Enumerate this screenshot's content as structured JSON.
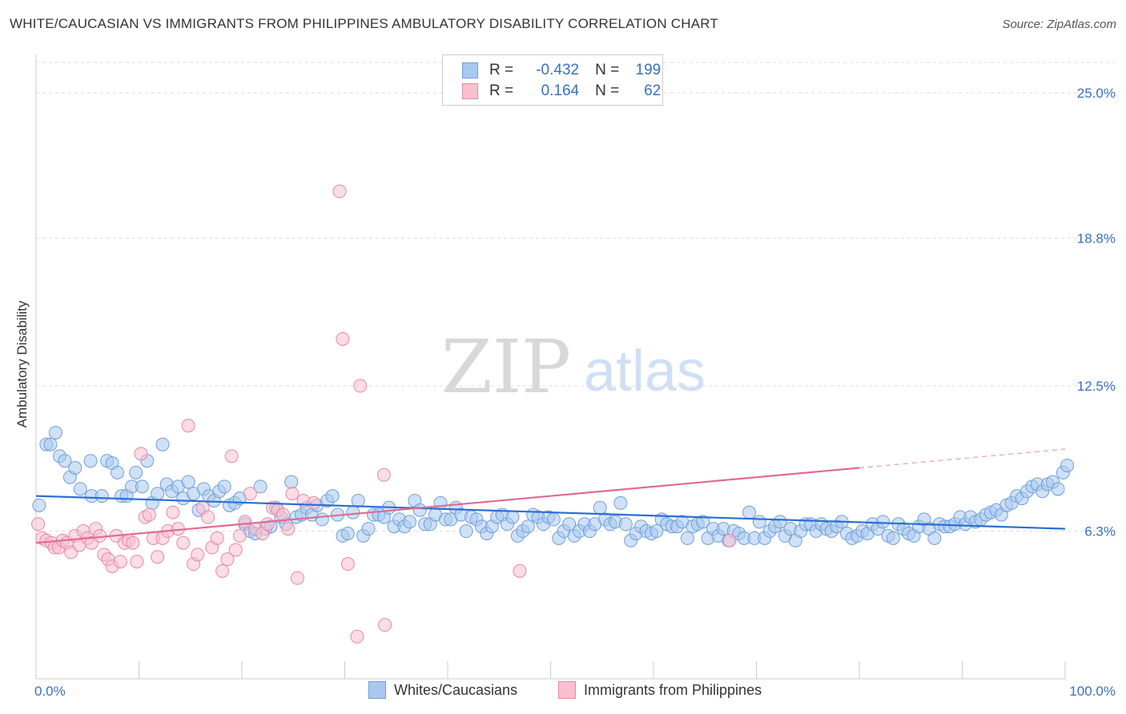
{
  "title": "WHITE/CAUCASIAN VS IMMIGRANTS FROM PHILIPPINES AMBULATORY DISABILITY CORRELATION CHART",
  "source": "Source: ZipAtlas.com",
  "watermark": {
    "zip": "ZIP",
    "atlas": "atlas"
  },
  "legend_top": {
    "r_label": "R =",
    "n_label": "N =",
    "rows": [
      {
        "r": "-0.432",
        "n": "199",
        "color": "#a9c8f0",
        "border": "#6f9fd8"
      },
      {
        "r": "0.164",
        "n": "62",
        "color": "#f9c0d0",
        "border": "#e38aa5"
      }
    ]
  },
  "chart_data": {
    "type": "scatter",
    "title": "WHITE/CAUCASIAN VS IMMIGRANTS FROM PHILIPPINES AMBULATORY DISABILITY CORRELATION CHART",
    "xlabel": "",
    "ylabel": "Ambulatory Disability",
    "xlim": [
      0,
      100
    ],
    "ylim": [
      0,
      26.3
    ],
    "x_tick_labels": [
      "0.0%",
      "100.0%"
    ],
    "y_ticks": [
      6.3,
      12.5,
      18.8,
      25.0
    ],
    "y_tick_labels": [
      "6.3%",
      "12.5%",
      "18.8%",
      "25.0%"
    ],
    "grid": true,
    "legend_position": "bottom",
    "series": [
      {
        "name": "Whites/Caucasians",
        "color": "#6f9fd8",
        "fill": "#a9c8f0",
        "trend": {
          "x0": 0,
          "y0": 7.8,
          "x1": 100,
          "y1": 6.4,
          "dash_from": null
        },
        "points": [
          [
            0.3,
            7.4
          ],
          [
            1.0,
            10.0
          ],
          [
            1.4,
            10.0
          ],
          [
            1.9,
            10.5
          ],
          [
            2.3,
            9.5
          ],
          [
            2.8,
            9.3
          ],
          [
            3.3,
            8.6
          ],
          [
            3.8,
            9.0
          ],
          [
            4.3,
            8.1
          ],
          [
            5.4,
            7.8
          ],
          [
            5.3,
            9.3
          ],
          [
            6.4,
            7.8
          ],
          [
            6.9,
            9.3
          ],
          [
            7.4,
            9.2
          ],
          [
            7.9,
            8.8
          ],
          [
            8.3,
            7.8
          ],
          [
            8.8,
            7.8
          ],
          [
            9.3,
            8.2
          ],
          [
            9.7,
            8.8
          ],
          [
            10.3,
            8.2
          ],
          [
            10.8,
            9.3
          ],
          [
            11.3,
            7.5
          ],
          [
            11.8,
            7.9
          ],
          [
            12.3,
            10.0
          ],
          [
            12.7,
            8.3
          ],
          [
            13.2,
            8.0
          ],
          [
            13.8,
            8.2
          ],
          [
            14.3,
            7.7
          ],
          [
            14.8,
            8.4
          ],
          [
            15.3,
            7.9
          ],
          [
            15.8,
            7.2
          ],
          [
            16.3,
            8.1
          ],
          [
            16.8,
            7.8
          ],
          [
            17.3,
            7.6
          ],
          [
            17.8,
            8.0
          ],
          [
            18.3,
            8.2
          ],
          [
            18.8,
            7.4
          ],
          [
            19.3,
            7.5
          ],
          [
            19.8,
            7.7
          ],
          [
            20.3,
            6.6
          ],
          [
            20.8,
            6.3
          ],
          [
            21.3,
            6.2
          ],
          [
            21.8,
            8.2
          ],
          [
            22.3,
            6.4
          ],
          [
            22.8,
            6.5
          ],
          [
            23.3,
            7.3
          ],
          [
            23.8,
            6.9
          ],
          [
            24.3,
            6.6
          ],
          [
            24.8,
            8.4
          ],
          [
            25.3,
            6.9
          ],
          [
            25.8,
            7.0
          ],
          [
            26.3,
            7.3
          ],
          [
            26.8,
            7.0
          ],
          [
            27.3,
            7.4
          ],
          [
            27.8,
            6.8
          ],
          [
            28.3,
            7.6
          ],
          [
            28.8,
            7.8
          ],
          [
            29.3,
            7.0
          ],
          [
            29.8,
            6.1
          ],
          [
            30.3,
            6.2
          ],
          [
            30.8,
            7.1
          ],
          [
            31.3,
            7.6
          ],
          [
            31.8,
            6.1
          ],
          [
            32.3,
            6.4
          ],
          [
            32.8,
            7.0
          ],
          [
            33.3,
            7.0
          ],
          [
            33.8,
            6.9
          ],
          [
            34.3,
            7.3
          ],
          [
            34.8,
            6.5
          ],
          [
            35.3,
            6.8
          ],
          [
            35.8,
            6.5
          ],
          [
            36.3,
            6.7
          ],
          [
            36.8,
            7.6
          ],
          [
            37.3,
            7.2
          ],
          [
            37.8,
            6.6
          ],
          [
            38.3,
            6.6
          ],
          [
            38.8,
            7.0
          ],
          [
            39.3,
            7.5
          ],
          [
            39.8,
            6.8
          ],
          [
            40.3,
            6.8
          ],
          [
            40.8,
            7.3
          ],
          [
            41.3,
            7.0
          ],
          [
            41.8,
            6.3
          ],
          [
            42.3,
            6.9
          ],
          [
            42.8,
            6.8
          ],
          [
            43.3,
            6.5
          ],
          [
            43.8,
            6.2
          ],
          [
            44.3,
            6.5
          ],
          [
            44.8,
            6.9
          ],
          [
            45.3,
            7.0
          ],
          [
            45.8,
            6.6
          ],
          [
            46.3,
            6.9
          ],
          [
            46.8,
            6.1
          ],
          [
            47.3,
            6.3
          ],
          [
            47.8,
            6.5
          ],
          [
            48.3,
            7.0
          ],
          [
            48.8,
            6.9
          ],
          [
            49.3,
            6.6
          ],
          [
            49.8,
            6.9
          ],
          [
            50.3,
            6.8
          ],
          [
            50.8,
            6.0
          ],
          [
            51.3,
            6.3
          ],
          [
            51.8,
            6.6
          ],
          [
            52.3,
            6.1
          ],
          [
            52.8,
            6.3
          ],
          [
            53.3,
            6.6
          ],
          [
            53.8,
            6.3
          ],
          [
            54.3,
            6.6
          ],
          [
            54.8,
            7.3
          ],
          [
            55.3,
            6.8
          ],
          [
            55.8,
            6.6
          ],
          [
            56.3,
            6.7
          ],
          [
            56.8,
            7.5
          ],
          [
            57.3,
            6.6
          ],
          [
            57.8,
            5.9
          ],
          [
            58.3,
            6.2
          ],
          [
            58.8,
            6.5
          ],
          [
            59.3,
            6.3
          ],
          [
            59.8,
            6.2
          ],
          [
            60.3,
            6.3
          ],
          [
            60.8,
            6.8
          ],
          [
            61.3,
            6.6
          ],
          [
            61.8,
            6.5
          ],
          [
            62.3,
            6.5
          ],
          [
            62.8,
            6.7
          ],
          [
            63.3,
            6.0
          ],
          [
            63.8,
            6.5
          ],
          [
            64.3,
            6.6
          ],
          [
            64.8,
            6.7
          ],
          [
            65.3,
            6.0
          ],
          [
            65.8,
            6.4
          ],
          [
            66.3,
            6.1
          ],
          [
            66.8,
            6.4
          ],
          [
            67.3,
            5.9
          ],
          [
            67.8,
            6.3
          ],
          [
            68.3,
            6.2
          ],
          [
            68.8,
            6.0
          ],
          [
            69.3,
            7.1
          ],
          [
            69.8,
            6.0
          ],
          [
            70.3,
            6.7
          ],
          [
            70.8,
            6.0
          ],
          [
            71.3,
            6.3
          ],
          [
            71.8,
            6.5
          ],
          [
            72.3,
            6.7
          ],
          [
            72.8,
            6.1
          ],
          [
            73.3,
            6.4
          ],
          [
            73.8,
            5.9
          ],
          [
            74.3,
            6.3
          ],
          [
            74.8,
            6.6
          ],
          [
            75.3,
            6.6
          ],
          [
            75.8,
            6.3
          ],
          [
            76.3,
            6.6
          ],
          [
            76.8,
            6.4
          ],
          [
            77.3,
            6.3
          ],
          [
            77.8,
            6.5
          ],
          [
            78.3,
            6.7
          ],
          [
            78.8,
            6.2
          ],
          [
            79.3,
            6.0
          ],
          [
            79.8,
            6.1
          ],
          [
            80.3,
            6.3
          ],
          [
            80.8,
            6.2
          ],
          [
            81.3,
            6.6
          ],
          [
            81.8,
            6.4
          ],
          [
            82.3,
            6.7
          ],
          [
            82.8,
            6.1
          ],
          [
            83.3,
            6.0
          ],
          [
            83.8,
            6.6
          ],
          [
            84.3,
            6.4
          ],
          [
            84.8,
            6.2
          ],
          [
            85.3,
            6.1
          ],
          [
            85.8,
            6.5
          ],
          [
            86.3,
            6.8
          ],
          [
            86.8,
            6.4
          ],
          [
            87.3,
            6.0
          ],
          [
            87.8,
            6.6
          ],
          [
            88.3,
            6.5
          ],
          [
            88.8,
            6.5
          ],
          [
            89.3,
            6.6
          ],
          [
            89.8,
            6.9
          ],
          [
            90.3,
            6.6
          ],
          [
            90.8,
            6.9
          ],
          [
            91.3,
            6.7
          ],
          [
            91.8,
            6.8
          ],
          [
            92.3,
            7.0
          ],
          [
            92.8,
            7.1
          ],
          [
            93.3,
            7.2
          ],
          [
            93.8,
            7.0
          ],
          [
            94.3,
            7.4
          ],
          [
            94.8,
            7.5
          ],
          [
            95.3,
            7.8
          ],
          [
            95.8,
            7.7
          ],
          [
            96.3,
            8.0
          ],
          [
            96.8,
            8.2
          ],
          [
            97.3,
            8.3
          ],
          [
            97.8,
            8.0
          ],
          [
            98.3,
            8.3
          ],
          [
            98.8,
            8.4
          ],
          [
            99.3,
            8.1
          ],
          [
            99.8,
            8.8
          ],
          [
            100.2,
            9.1
          ]
        ]
      },
      {
        "name": "Immigrants from Philippines",
        "color": "#e38aa5",
        "fill": "#f9c0d0",
        "trend": {
          "x0": 0,
          "y0": 5.8,
          "x1": 80,
          "y1": 9.0,
          "dash_to": 100,
          "dash_y": 9.8
        },
        "points": [
          [
            0.2,
            6.6
          ],
          [
            0.6,
            6.0
          ],
          [
            1.0,
            5.9
          ],
          [
            1.5,
            5.8
          ],
          [
            1.8,
            5.6
          ],
          [
            2.2,
            5.6
          ],
          [
            2.6,
            5.9
          ],
          [
            3.0,
            5.8
          ],
          [
            3.4,
            5.4
          ],
          [
            3.8,
            6.1
          ],
          [
            4.2,
            5.7
          ],
          [
            4.6,
            6.3
          ],
          [
            5.0,
            6.0
          ],
          [
            5.4,
            5.8
          ],
          [
            5.8,
            6.4
          ],
          [
            6.2,
            6.1
          ],
          [
            6.6,
            5.3
          ],
          [
            7.0,
            5.1
          ],
          [
            7.4,
            4.8
          ],
          [
            7.8,
            6.1
          ],
          [
            8.2,
            5.0
          ],
          [
            8.6,
            5.8
          ],
          [
            9.0,
            5.9
          ],
          [
            9.4,
            5.8
          ],
          [
            9.8,
            5.0
          ],
          [
            10.2,
            9.6
          ],
          [
            10.6,
            6.9
          ],
          [
            11.0,
            7.0
          ],
          [
            11.4,
            6.0
          ],
          [
            11.8,
            5.2
          ],
          [
            12.3,
            6.0
          ],
          [
            12.8,
            6.3
          ],
          [
            13.3,
            7.1
          ],
          [
            13.8,
            6.4
          ],
          [
            14.3,
            5.8
          ],
          [
            14.8,
            10.8
          ],
          [
            15.3,
            4.9
          ],
          [
            15.7,
            5.3
          ],
          [
            16.2,
            7.3
          ],
          [
            16.7,
            6.9
          ],
          [
            17.1,
            5.6
          ],
          [
            17.6,
            6.0
          ],
          [
            18.1,
            4.6
          ],
          [
            18.6,
            5.1
          ],
          [
            19.0,
            9.5
          ],
          [
            19.4,
            5.5
          ],
          [
            19.8,
            6.1
          ],
          [
            20.3,
            6.7
          ],
          [
            20.8,
            7.9
          ],
          [
            21.3,
            6.4
          ],
          [
            22.0,
            6.2
          ],
          [
            22.5,
            6.6
          ],
          [
            23.0,
            7.3
          ],
          [
            23.5,
            7.2
          ],
          [
            24.0,
            7.0
          ],
          [
            24.5,
            6.4
          ],
          [
            24.9,
            7.9
          ],
          [
            25.4,
            4.3
          ],
          [
            26.0,
            7.6
          ],
          [
            27.0,
            7.5
          ],
          [
            29.5,
            20.8
          ],
          [
            29.8,
            14.5
          ],
          [
            30.3,
            4.9
          ],
          [
            31.5,
            12.5
          ],
          [
            33.8,
            8.7
          ],
          [
            33.9,
            2.3
          ],
          [
            31.2,
            1.8
          ],
          [
            47.0,
            4.6
          ],
          [
            67.4,
            5.9
          ]
        ]
      }
    ]
  },
  "legend_bottom": [
    {
      "label": "Whites/Caucasians",
      "color": "#a9c8f0",
      "border": "#6f9fd8"
    },
    {
      "label": "Immigrants from Philippines",
      "color": "#f9c0d0",
      "border": "#e38aa5"
    }
  ]
}
